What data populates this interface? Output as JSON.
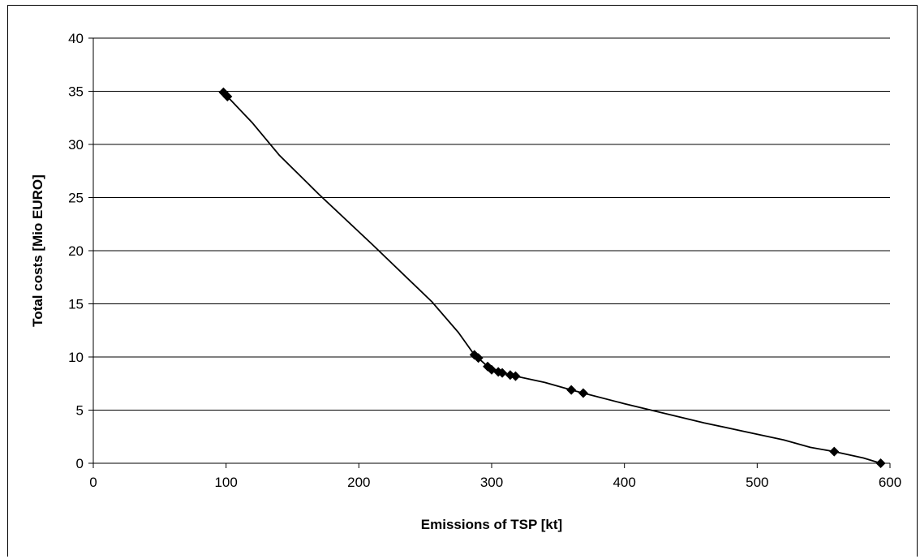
{
  "chart_data": {
    "type": "scatter",
    "xlabel": "Emissions of TSP [kt]",
    "ylabel": "Total costs [Mio EURO]",
    "xlim": [
      0,
      600
    ],
    "ylim": [
      0,
      40
    ],
    "x_ticks": [
      0,
      100,
      200,
      300,
      400,
      500,
      600
    ],
    "y_ticks": [
      0,
      5,
      10,
      15,
      20,
      25,
      30,
      35,
      40
    ],
    "grid": "horizontal",
    "marker": "diamond",
    "color": "#000000",
    "points": [
      {
        "x": 98,
        "y": 34.9
      },
      {
        "x": 101,
        "y": 34.5
      },
      {
        "x": 287,
        "y": 10.2
      },
      {
        "x": 290,
        "y": 9.9
      },
      {
        "x": 297,
        "y": 9.1
      },
      {
        "x": 300,
        "y": 8.8
      },
      {
        "x": 305,
        "y": 8.6
      },
      {
        "x": 308,
        "y": 8.5
      },
      {
        "x": 314,
        "y": 8.3
      },
      {
        "x": 318,
        "y": 8.2
      },
      {
        "x": 360,
        "y": 6.9
      },
      {
        "x": 369,
        "y": 6.6
      },
      {
        "x": 558,
        "y": 1.1
      },
      {
        "x": 593,
        "y": 0.0
      }
    ],
    "curve": [
      {
        "x": 98,
        "y": 34.9
      },
      {
        "x": 101,
        "y": 34.5
      },
      {
        "x": 120,
        "y": 32.0
      },
      {
        "x": 140,
        "y": 29.0
      },
      {
        "x": 170,
        "y": 25.3
      },
      {
        "x": 210,
        "y": 20.6
      },
      {
        "x": 255,
        "y": 15.2
      },
      {
        "x": 275,
        "y": 12.3
      },
      {
        "x": 287,
        "y": 10.2
      },
      {
        "x": 290,
        "y": 9.9
      },
      {
        "x": 297,
        "y": 9.1
      },
      {
        "x": 300,
        "y": 8.8
      },
      {
        "x": 305,
        "y": 8.6
      },
      {
        "x": 308,
        "y": 8.5
      },
      {
        "x": 314,
        "y": 8.3
      },
      {
        "x": 318,
        "y": 8.2
      },
      {
        "x": 340,
        "y": 7.6
      },
      {
        "x": 360,
        "y": 6.9
      },
      {
        "x": 369,
        "y": 6.6
      },
      {
        "x": 400,
        "y": 5.6
      },
      {
        "x": 420,
        "y": 5.0
      },
      {
        "x": 460,
        "y": 3.8
      },
      {
        "x": 490,
        "y": 3.0
      },
      {
        "x": 520,
        "y": 2.2
      },
      {
        "x": 540,
        "y": 1.5
      },
      {
        "x": 558,
        "y": 1.1
      },
      {
        "x": 580,
        "y": 0.5
      },
      {
        "x": 593,
        "y": 0.0
      }
    ]
  }
}
